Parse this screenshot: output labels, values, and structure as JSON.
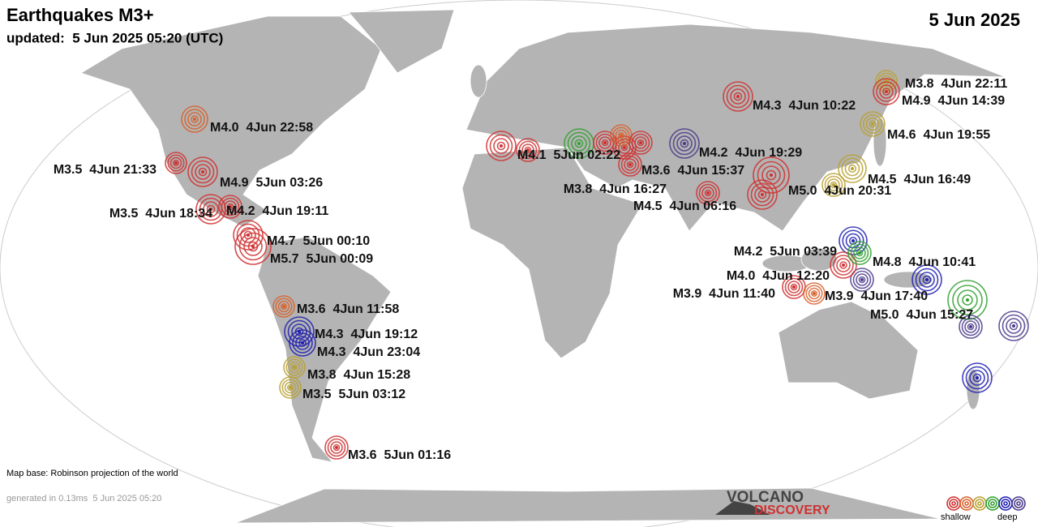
{
  "header": {
    "title": "Earthquakes M3+",
    "updated": "updated:  5 Jun 2025 05:20 (UTC)",
    "date": "5 Jun 2025"
  },
  "quakes": [
    {
      "label": "M4.0  4Jun 22:58",
      "color": "#d8602a"
    },
    {
      "label": "M3.5  4Jun 21:33",
      "color": "#d03030"
    },
    {
      "label": "M4.9  5Jun 03:26",
      "color": "#d03030"
    },
    {
      "label": "M3.5  4Jun 18:34",
      "color": "#d03030"
    },
    {
      "label": "M4.2  4Jun 19:11",
      "color": "#d03030"
    },
    {
      "label": "M4.7  5Jun 00:10",
      "color": "#d03030"
    },
    {
      "label": "M5.7  5Jun 00:09",
      "color": "#d03030"
    },
    {
      "label": "M3.6  4Jun 11:58",
      "color": "#d8602a"
    },
    {
      "label": "M4.3  4Jun 19:12",
      "color": "#2020b0"
    },
    {
      "label": "M4.3  4Jun 23:04",
      "color": "#2020b0"
    },
    {
      "label": "M3.8  4Jun 15:28",
      "color": "#b8a030"
    },
    {
      "label": "M3.5  5Jun 03:12",
      "color": "#b8a030"
    },
    {
      "label": "M3.6  5Jun 01:16",
      "color": "#d03030"
    },
    {
      "label": "M4.1  5Jun 02:22",
      "color": "#d03030"
    },
    {
      "label": "M4.2  4Jun 19:29",
      "color": "#4a3a8a"
    },
    {
      "label": "M3.6  4Jun 15:37",
      "color": "#d03030"
    },
    {
      "label": "M3.8  4Jun 16:27",
      "color": "#d03030"
    },
    {
      "label": "M4.5  4Jun 06:16",
      "color": "#d03030"
    },
    {
      "label": "M4.3  4Jun 10:22",
      "color": "#d03030"
    },
    {
      "label": "M5.0  4Jun 20:31",
      "color": "#d03030"
    },
    {
      "label": "M3.8  4Jun 22:11",
      "color": "#b8a030"
    },
    {
      "label": "M4.9  4Jun 14:39",
      "color": "#d03030"
    },
    {
      "label": "M4.6  4Jun 19:55",
      "color": "#b8a030"
    },
    {
      "label": "M4.5  4Jun 16:49",
      "color": "#b8a030"
    },
    {
      "label": "M4.2  5Jun 03:39",
      "color": "#2020b0"
    },
    {
      "label": "M4.8  4Jun 10:41",
      "color": "#4a3a8a"
    },
    {
      "label": "M4.0  4Jun 12:20",
      "color": "#d03030"
    },
    {
      "label": "M3.9  4Jun 11:40",
      "color": "#d03030"
    },
    {
      "label": "M3.9  4Jun 17:40",
      "color": "#d8602a"
    },
    {
      "label": "M5.0  4Jun 15:27",
      "color": "#30a030"
    }
  ],
  "footer": {
    "map_base": "Map base: Robinson projection of the world",
    "generated": "generated in 0.13ms  5 Jun 2025 05:20"
  },
  "logo": {
    "line1": "VOLCANO",
    "line2": "DISCOVERY"
  },
  "legend": {
    "shallow": "shallow",
    "deep": "deep"
  }
}
